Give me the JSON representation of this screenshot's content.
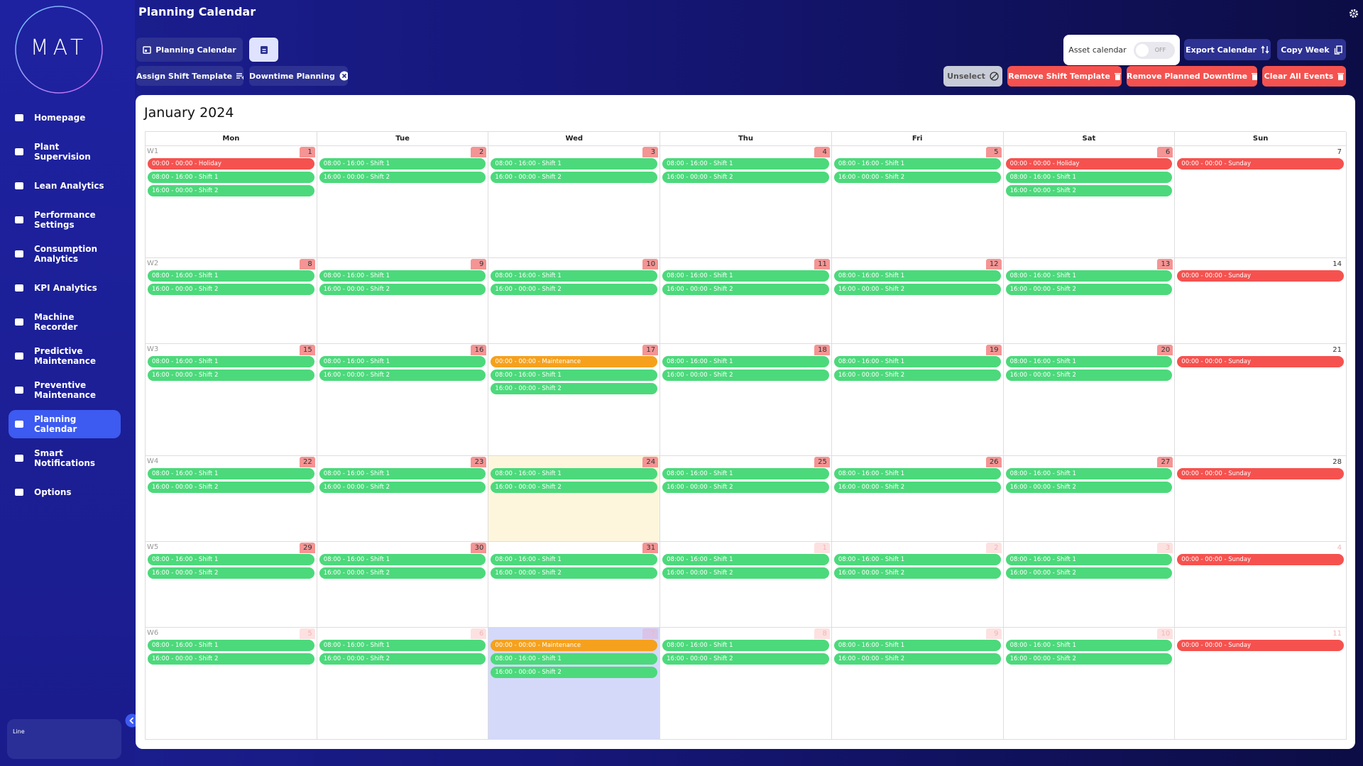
{
  "logo": "MAT",
  "header": {
    "title": "Planning Calendar"
  },
  "sidebar": {
    "items": [
      {
        "label": "Homepage"
      },
      {
        "label": "Plant Supervision"
      },
      {
        "label": "Lean Analytics"
      },
      {
        "label": "Performance Settings"
      },
      {
        "label": "Consumption Analytics"
      },
      {
        "label": "KPI Analytics"
      },
      {
        "label": "Machine Recorder"
      },
      {
        "label": "Predictive Maintenance"
      },
      {
        "label": "Preventive Maintenance"
      },
      {
        "label": "Planning Calendar",
        "active": true
      },
      {
        "label": "Smart Notifications"
      },
      {
        "label": "Options"
      }
    ],
    "footer": "Line"
  },
  "toolbar": {
    "planning_calendar": "Planning Calendar",
    "assign_shift_template": "Assign Shift Template",
    "downtime_planning": "Downtime Planning",
    "asset_calendar": "Asset calendar",
    "toggle": "OFF",
    "export_calendar": "Export Calendar",
    "copy_week": "Copy Week",
    "unselect": "Unselect",
    "remove_shift_template": "Remove Shift Template",
    "remove_planned_downtime": "Remove Planned Downtime",
    "clear_all_events": "Clear All Events"
  },
  "calendar": {
    "title": "January 2024",
    "weekdays": [
      "Mon",
      "Tue",
      "Wed",
      "Thu",
      "Fri",
      "Sat",
      "Sun"
    ],
    "weeks": [
      {
        "label": "W1",
        "days": [
          {
            "day": 1,
            "badge": "#f59494",
            "events": [
              {
                "label": "00:00 - 00:00 - Holiday",
                "color": "#f5524f"
              },
              {
                "label": "08:00 - 16:00 - Shift 1",
                "color": "#4cd97b"
              },
              {
                "label": "16:00 - 00:00 - Shift 2",
                "color": "#4cd97b"
              }
            ]
          },
          {
            "day": 2,
            "badge": "#f59494",
            "events": [
              {
                "label": "08:00 - 16:00 - Shift 1",
                "color": "#4cd97b"
              },
              {
                "label": "16:00 - 00:00 - Shift 2",
                "color": "#4cd97b"
              }
            ]
          },
          {
            "day": 3,
            "badge": "#f59494",
            "events": [
              {
                "label": "08:00 - 16:00 - Shift 1",
                "color": "#4cd97b"
              },
              {
                "label": "16:00 - 00:00 - Shift 2",
                "color": "#4cd97b"
              }
            ]
          },
          {
            "day": 4,
            "badge": "#f59494",
            "events": [
              {
                "label": "08:00 - 16:00 - Shift 1",
                "color": "#4cd97b"
              },
              {
                "label": "16:00 - 00:00 - Shift 2",
                "color": "#4cd97b"
              }
            ]
          },
          {
            "day": 5,
            "badge": "#f59494",
            "events": [
              {
                "label": "08:00 - 16:00 - Shift 1",
                "color": "#4cd97b"
              },
              {
                "label": "16:00 - 00:00 - Shift 2",
                "color": "#4cd97b"
              }
            ]
          },
          {
            "day": 6,
            "badge": "#f59494",
            "events": [
              {
                "label": "00:00 - 00:00 - Holiday",
                "color": "#f5524f"
              },
              {
                "label": "08:00 - 16:00 - Shift 1",
                "color": "#4cd97b"
              },
              {
                "label": "16:00 - 00:00 - Shift 2",
                "color": "#4cd97b"
              }
            ]
          },
          {
            "day": 7,
            "events": [
              {
                "label": "00:00 - 00:00 - Sunday",
                "color": "#f5524f"
              }
            ]
          }
        ]
      },
      {
        "label": "W2",
        "days": [
          {
            "day": 8,
            "badge": "#f59494",
            "events": [
              {
                "label": "08:00 - 16:00 - Shift 1",
                "color": "#4cd97b"
              },
              {
                "label": "16:00 - 00:00 - Shift 2",
                "color": "#4cd97b"
              }
            ]
          },
          {
            "day": 9,
            "badge": "#f59494",
            "events": [
              {
                "label": "08:00 - 16:00 - Shift 1",
                "color": "#4cd97b"
              },
              {
                "label": "16:00 - 00:00 - Shift 2",
                "color": "#4cd97b"
              }
            ]
          },
          {
            "day": 10,
            "badge": "#f59494",
            "events": [
              {
                "label": "08:00 - 16:00 - Shift 1",
                "color": "#4cd97b"
              },
              {
                "label": "16:00 - 00:00 - Shift 2",
                "color": "#4cd97b"
              }
            ]
          },
          {
            "day": 11,
            "badge": "#f59494",
            "events": [
              {
                "label": "08:00 - 16:00 - Shift 1",
                "color": "#4cd97b"
              },
              {
                "label": "16:00 - 00:00 - Shift 2",
                "color": "#4cd97b"
              }
            ]
          },
          {
            "day": 12,
            "badge": "#f59494",
            "events": [
              {
                "label": "08:00 - 16:00 - Shift 1",
                "color": "#4cd97b"
              },
              {
                "label": "16:00 - 00:00 - Shift 2",
                "color": "#4cd97b"
              }
            ]
          },
          {
            "day": 13,
            "badge": "#f59494",
            "events": [
              {
                "label": "08:00 - 16:00 - Shift 1",
                "color": "#4cd97b"
              },
              {
                "label": "16:00 - 00:00 - Shift 2",
                "color": "#4cd97b"
              }
            ]
          },
          {
            "day": 14,
            "events": [
              {
                "label": "00:00 - 00:00 - Sunday",
                "color": "#f5524f"
              }
            ]
          }
        ]
      },
      {
        "label": "W3",
        "days": [
          {
            "day": 15,
            "badge": "#f59494",
            "events": [
              {
                "label": "08:00 - 16:00 - Shift 1",
                "color": "#4cd97b"
              },
              {
                "label": "16:00 - 00:00 - Shift 2",
                "color": "#4cd97b"
              }
            ]
          },
          {
            "day": 16,
            "badge": "#f59494",
            "events": [
              {
                "label": "08:00 - 16:00 - Shift 1",
                "color": "#4cd97b"
              },
              {
                "label": "16:00 - 00:00 - Shift 2",
                "color": "#4cd97b"
              }
            ]
          },
          {
            "day": 17,
            "badge": "#f59494",
            "events": [
              {
                "label": "00:00 - 00:00 - Maintenance",
                "color": "#f5a11e"
              },
              {
                "label": "08:00 - 16:00 - Shift 1",
                "color": "#4cd97b"
              },
              {
                "label": "16:00 - 00:00 - Shift 2",
                "color": "#4cd97b"
              }
            ]
          },
          {
            "day": 18,
            "badge": "#f59494",
            "events": [
              {
                "label": "08:00 - 16:00 - Shift 1",
                "color": "#4cd97b"
              },
              {
                "label": "16:00 - 00:00 - Shift 2",
                "color": "#4cd97b"
              }
            ]
          },
          {
            "day": 19,
            "badge": "#f59494",
            "events": [
              {
                "label": "08:00 - 16:00 - Shift 1",
                "color": "#4cd97b"
              },
              {
                "label": "16:00 - 00:00 - Shift 2",
                "color": "#4cd97b"
              }
            ]
          },
          {
            "day": 20,
            "badge": "#f59494",
            "events": [
              {
                "label": "08:00 - 16:00 - Shift 1",
                "color": "#4cd97b"
              },
              {
                "label": "16:00 - 00:00 - Shift 2",
                "color": "#4cd97b"
              }
            ]
          },
          {
            "day": 21,
            "events": [
              {
                "label": "00:00 - 00:00 - Sunday",
                "color": "#f5524f"
              }
            ]
          }
        ]
      },
      {
        "label": "W4",
        "days": [
          {
            "day": 22,
            "badge": "#f59494",
            "events": [
              {
                "label": "08:00 - 16:00 - Shift 1",
                "color": "#4cd97b"
              },
              {
                "label": "16:00 - 00:00 - Shift 2",
                "color": "#4cd97b"
              }
            ]
          },
          {
            "day": 23,
            "badge": "#f59494",
            "events": [
              {
                "label": "08:00 - 16:00 - Shift 1",
                "color": "#4cd97b"
              },
              {
                "label": "16:00 - 00:00 - Shift 2",
                "color": "#4cd97b"
              }
            ]
          },
          {
            "day": 24,
            "badge": "#f59494",
            "bg": "#fdf6dd",
            "events": [
              {
                "label": "08:00 - 16:00 - Shift 1",
                "color": "#4cd97b"
              },
              {
                "label": "16:00 - 00:00 - Shift 2",
                "color": "#4cd97b"
              }
            ]
          },
          {
            "day": 25,
            "badge": "#f59494",
            "events": [
              {
                "label": "08:00 - 16:00 - Shift 1",
                "color": "#4cd97b"
              },
              {
                "label": "16:00 - 00:00 - Shift 2",
                "color": "#4cd97b"
              }
            ]
          },
          {
            "day": 26,
            "badge": "#f59494",
            "events": [
              {
                "label": "08:00 - 16:00 - Shift 1",
                "color": "#4cd97b"
              },
              {
                "label": "16:00 - 00:00 - Shift 2",
                "color": "#4cd97b"
              }
            ]
          },
          {
            "day": 27,
            "badge": "#f59494",
            "events": [
              {
                "label": "08:00 - 16:00 - Shift 1",
                "color": "#4cd97b"
              },
              {
                "label": "16:00 - 00:00 - Shift 2",
                "color": "#4cd97b"
              }
            ]
          },
          {
            "day": 28,
            "events": [
              {
                "label": "00:00 - 00:00 - Sunday",
                "color": "#f5524f"
              }
            ]
          }
        ]
      },
      {
        "label": "W5",
        "days": [
          {
            "day": 29,
            "badge": "#f59494",
            "events": [
              {
                "label": "08:00 - 16:00 - Shift 1",
                "color": "#4cd97b"
              },
              {
                "label": "16:00 - 00:00 - Shift 2",
                "color": "#4cd97b"
              }
            ]
          },
          {
            "day": 30,
            "badge": "#f59494",
            "events": [
              {
                "label": "08:00 - 16:00 - Shift 1",
                "color": "#4cd97b"
              },
              {
                "label": "16:00 - 00:00 - Shift 2",
                "color": "#4cd97b"
              }
            ]
          },
          {
            "day": 31,
            "badge": "#f59494",
            "events": [
              {
                "label": "08:00 - 16:00 - Shift 1",
                "color": "#4cd97b"
              },
              {
                "label": "16:00 - 00:00 - Shift 2",
                "color": "#4cd97b"
              }
            ]
          },
          {
            "day": 1,
            "badge": "#fde1e1",
            "faded": true,
            "events": [
              {
                "label": "08:00 - 16:00 - Shift 1",
                "color": "#4cd97b"
              },
              {
                "label": "16:00 - 00:00 - Shift 2",
                "color": "#4cd97b"
              }
            ]
          },
          {
            "day": 2,
            "badge": "#fde1e1",
            "faded": true,
            "events": [
              {
                "label": "08:00 - 16:00 - Shift 1",
                "color": "#4cd97b"
              },
              {
                "label": "16:00 - 00:00 - Shift 2",
                "color": "#4cd97b"
              }
            ]
          },
          {
            "day": 3,
            "badge": "#fde1e1",
            "faded": true,
            "events": [
              {
                "label": "08:00 - 16:00 - Shift 1",
                "color": "#4cd97b"
              },
              {
                "label": "16:00 - 00:00 - Shift 2",
                "color": "#4cd97b"
              }
            ]
          },
          {
            "day": 4,
            "faded": true,
            "events": [
              {
                "label": "00:00 - 00:00 - Sunday",
                "color": "#f5524f"
              }
            ]
          }
        ]
      },
      {
        "label": "W6",
        "days": [
          {
            "day": 5,
            "badge": "#fde1e1",
            "faded": true,
            "events": [
              {
                "label": "08:00 - 16:00 - Shift 1",
                "color": "#4cd97b"
              },
              {
                "label": "16:00 - 00:00 - Shift 2",
                "color": "#4cd97b"
              }
            ]
          },
          {
            "day": 6,
            "badge": "#fde1e1",
            "faded": true,
            "events": [
              {
                "label": "08:00 - 16:00 - Shift 1",
                "color": "#4cd97b"
              },
              {
                "label": "16:00 - 00:00 - Shift 2",
                "color": "#4cd97b"
              }
            ]
          },
          {
            "day": 7,
            "badge": "#d9c4e8",
            "faded": true,
            "bg": "#d4d9fa",
            "events": [
              {
                "label": "00:00 - 00:00 - Maintenance",
                "color": "#f5a11e"
              },
              {
                "label": "08:00 - 16:00 - Shift 1",
                "color": "#4cd97b"
              },
              {
                "label": "16:00 - 00:00 - Shift 2",
                "color": "#4cd97b"
              }
            ]
          },
          {
            "day": 8,
            "badge": "#fde1e1",
            "faded": true,
            "events": [
              {
                "label": "08:00 - 16:00 - Shift 1",
                "color": "#4cd97b"
              },
              {
                "label": "16:00 - 00:00 - Shift 2",
                "color": "#4cd97b"
              }
            ]
          },
          {
            "day": 9,
            "badge": "#fde1e1",
            "faded": true,
            "events": [
              {
                "label": "08:00 - 16:00 - Shift 1",
                "color": "#4cd97b"
              },
              {
                "label": "16:00 - 00:00 - Shift 2",
                "color": "#4cd97b"
              }
            ]
          },
          {
            "day": 10,
            "badge": "#fde1e1",
            "faded": true,
            "events": [
              {
                "label": "08:00 - 16:00 - Shift 1",
                "color": "#4cd97b"
              },
              {
                "label": "16:00 - 00:00 - Shift 2",
                "color": "#4cd97b"
              }
            ]
          },
          {
            "day": 11,
            "faded": true,
            "events": [
              {
                "label": "00:00 - 00:00 - Sunday",
                "color": "#f5524f"
              }
            ]
          }
        ]
      }
    ]
  }
}
